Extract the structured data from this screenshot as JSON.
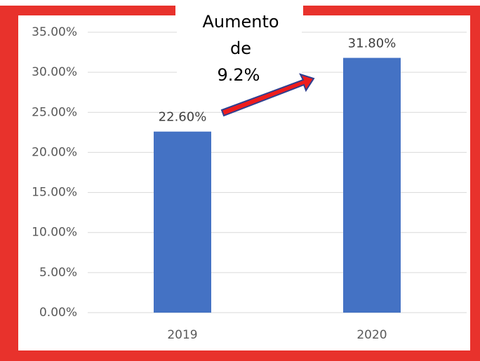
{
  "chart_data": {
    "type": "bar",
    "categories": [
      "2019",
      "2020"
    ],
    "values": [
      22.6,
      31.8
    ],
    "value_labels": [
      "22.60%",
      "31.80%"
    ],
    "color": "#4472c4",
    "ylim": [
      0,
      35
    ],
    "yticks": [
      {
        "value": 0,
        "label": "0.00%"
      },
      {
        "value": 5,
        "label": "5.00%"
      },
      {
        "value": 10,
        "label": "10.00%"
      },
      {
        "value": 15,
        "label": "15.00%"
      },
      {
        "value": 20,
        "label": "20.00%"
      },
      {
        "value": 25,
        "label": "25.00%"
      },
      {
        "value": 30,
        "label": "30.00%"
      },
      {
        "value": 35,
        "label": "35.00%"
      }
    ],
    "grid": true,
    "annotation": [
      "Aumento",
      "de",
      "9.2%"
    ]
  }
}
